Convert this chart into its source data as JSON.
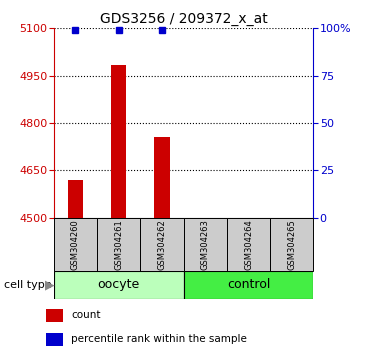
{
  "title": "GDS3256 / 209372_x_at",
  "samples": [
    "GSM304260",
    "GSM304261",
    "GSM304262",
    "GSM304263",
    "GSM304264",
    "GSM304265"
  ],
  "count_values": [
    4618,
    4985,
    4755,
    4500,
    4500,
    4500
  ],
  "percentile_values": [
    99,
    99,
    99,
    0,
    0,
    0
  ],
  "ylim": [
    4500,
    5100
  ],
  "yticks": [
    4500,
    4650,
    4800,
    4950,
    5100
  ],
  "right_yticks": [
    0,
    25,
    50,
    75,
    100
  ],
  "bar_color": "#cc0000",
  "percentile_color": "#0000cc",
  "oocyte_color": "#bbffbb",
  "control_color": "#44ee44",
  "sample_box_color": "#cccccc",
  "left_axis_color": "#cc0000",
  "right_axis_color": "#0000cc",
  "bar_width": 0.35,
  "percentile_marker_size": 5,
  "title_fontsize": 10,
  "tick_fontsize": 8,
  "sample_fontsize": 6,
  "celltype_fontsize": 9,
  "legend_fontsize": 7.5
}
